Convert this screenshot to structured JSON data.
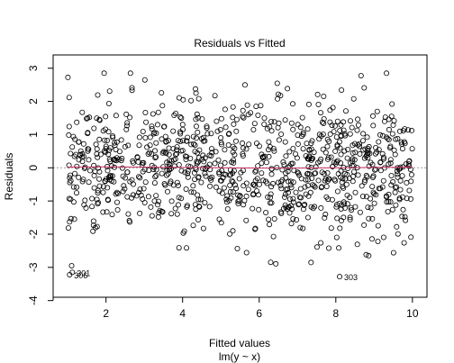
{
  "chart_data": {
    "type": "scatter",
    "title": "Residuals vs Fitted",
    "xlabel": "Fitted values",
    "xlabel_sub": "lm(y ~ x)",
    "ylabel": "Residuals",
    "xlim": [
      0.62,
      10.38
    ],
    "ylim": [
      -3.9,
      3.4
    ],
    "x_ticks": [
      2,
      4,
      6,
      8,
      10
    ],
    "x_tick_labels": [
      "2",
      "4",
      "6",
      "8",
      "10"
    ],
    "y_ticks": [
      -4,
      -3,
      -2,
      -1,
      0,
      1,
      2,
      3
    ],
    "y_tick_labels": [
      "-4",
      "-3",
      "-2",
      "-1",
      "0",
      "1",
      "2",
      "3"
    ],
    "reference_line": {
      "y": 0,
      "style": "dotted",
      "color": "#999999"
    },
    "smoother": {
      "color": "#cc3366",
      "x": [
        1.0,
        2.0,
        3.0,
        4.0,
        5.0,
        6.0,
        7.0,
        8.0,
        9.0,
        10.0
      ],
      "y": [
        0.02,
        0.03,
        0.02,
        0.01,
        0.0,
        -0.01,
        -0.01,
        0.0,
        0.01,
        0.02
      ]
    },
    "labeled_points": [
      {
        "label": "306",
        "x": 1.05,
        "y": -3.22
      },
      {
        "label": "301",
        "x": 1.12,
        "y": -3.15
      },
      {
        "label": "303",
        "x": 8.1,
        "y": -3.28
      }
    ],
    "point_count": 1000,
    "point_style": "open-circle",
    "x_range_of_points": [
      1.0,
      10.0
    ],
    "residual_sd": 1.0
  }
}
